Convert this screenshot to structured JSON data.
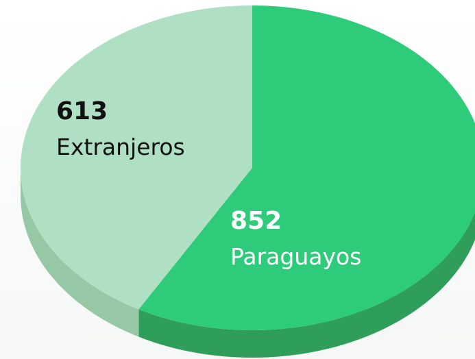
{
  "chart_data": {
    "type": "pie3d",
    "categories": [
      "Paraguayos",
      "Extranjeros"
    ],
    "values": [
      852,
      613
    ],
    "colors": [
      "#2ecc7a",
      "#b0e0c4"
    ],
    "side_colors": [
      "#2f9e5a",
      "#97c8a6"
    ]
  }
}
